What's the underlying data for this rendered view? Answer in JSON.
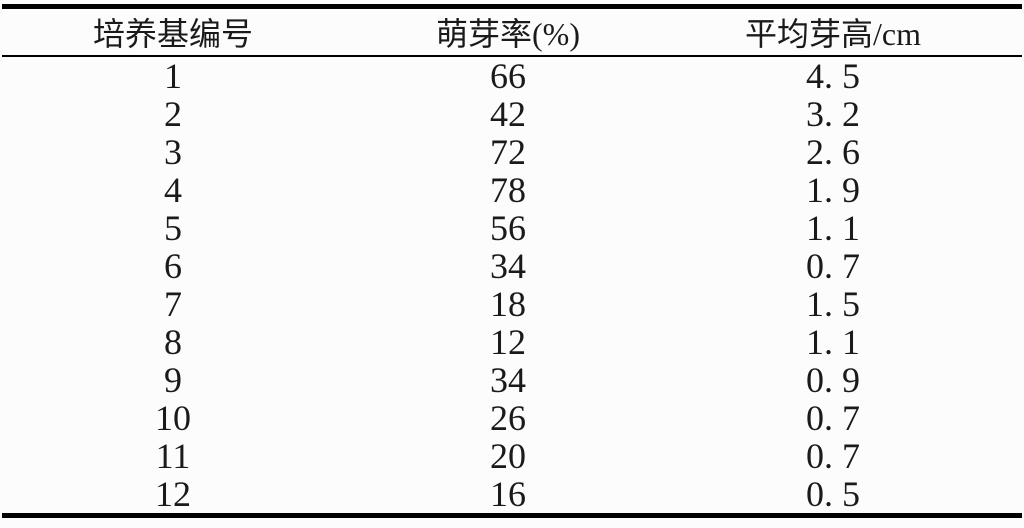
{
  "page": {
    "background_color": "#fcfcfc",
    "text_color": "#1a1a1a",
    "rule_color": "#000000"
  },
  "table": {
    "columns": [
      "培养基编号",
      "萌芽率(%)",
      "平均芽高/cm"
    ],
    "rows": [
      [
        "1",
        "66",
        "4. 5"
      ],
      [
        "2",
        "42",
        "3. 2"
      ],
      [
        "3",
        "72",
        "2. 6"
      ],
      [
        "4",
        "78",
        "1. 9"
      ],
      [
        "5",
        "56",
        "1. 1"
      ],
      [
        "6",
        "34",
        "0. 7"
      ],
      [
        "7",
        "18",
        "1. 5"
      ],
      [
        "8",
        "12",
        "1. 1"
      ],
      [
        "9",
        "34",
        "0. 9"
      ],
      [
        "10",
        "26",
        "0. 7"
      ],
      [
        "11",
        "20",
        "0. 7"
      ],
      [
        "12",
        "16",
        "0. 5"
      ]
    ]
  },
  "chart_data": {
    "type": "table",
    "title": "",
    "columns": [
      "培养基编号",
      "萌芽率(%)",
      "平均芽高/cm"
    ],
    "rows": [
      [
        1,
        66,
        4.5
      ],
      [
        2,
        42,
        3.2
      ],
      [
        3,
        72,
        2.6
      ],
      [
        4,
        78,
        1.9
      ],
      [
        5,
        56,
        1.1
      ],
      [
        6,
        34,
        0.7
      ],
      [
        7,
        18,
        1.5
      ],
      [
        8,
        12,
        1.1
      ],
      [
        9,
        34,
        0.9
      ],
      [
        10,
        26,
        0.7
      ],
      [
        11,
        20,
        0.7
      ],
      [
        12,
        16,
        0.5
      ]
    ]
  }
}
